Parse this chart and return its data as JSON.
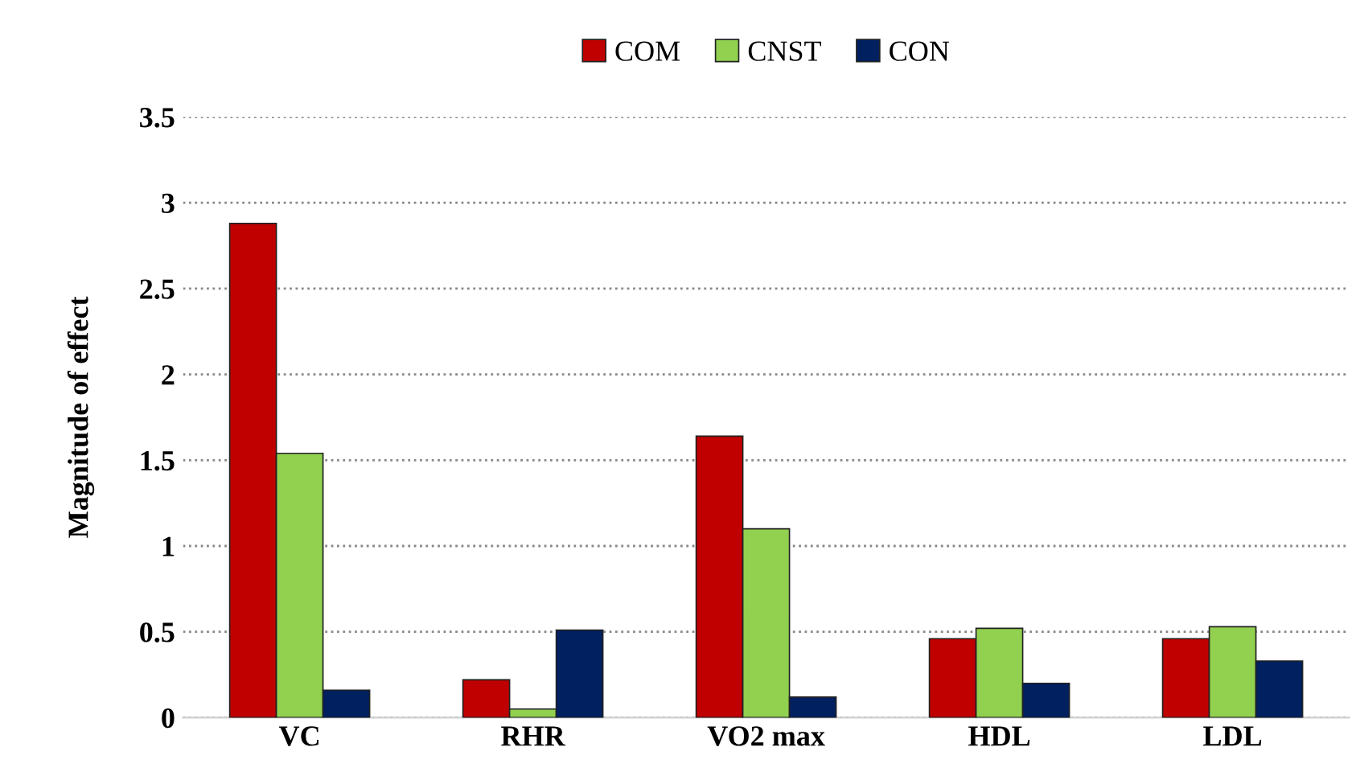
{
  "chart_data": {
    "type": "bar",
    "ylabel": "Magnitude of effect",
    "categories": [
      "VC",
      "RHR",
      "VO2 max",
      "HDL",
      "LDL"
    ],
    "series": [
      {
        "name": "COM",
        "color": "#c00000",
        "values": [
          2.88,
          0.22,
          1.64,
          0.46,
          0.46
        ]
      },
      {
        "name": "CNST",
        "color": "#92d050",
        "values": [
          1.54,
          0.05,
          1.1,
          0.52,
          0.53
        ]
      },
      {
        "name": "CON",
        "color": "#002060",
        "values": [
          0.16,
          0.51,
          0.12,
          0.2,
          0.33
        ]
      }
    ],
    "ylim": [
      0,
      3.5
    ],
    "yticks": [
      0,
      0.5,
      1,
      1.5,
      2,
      2.5,
      3,
      3.5
    ],
    "grid": "y",
    "legend": "top"
  }
}
